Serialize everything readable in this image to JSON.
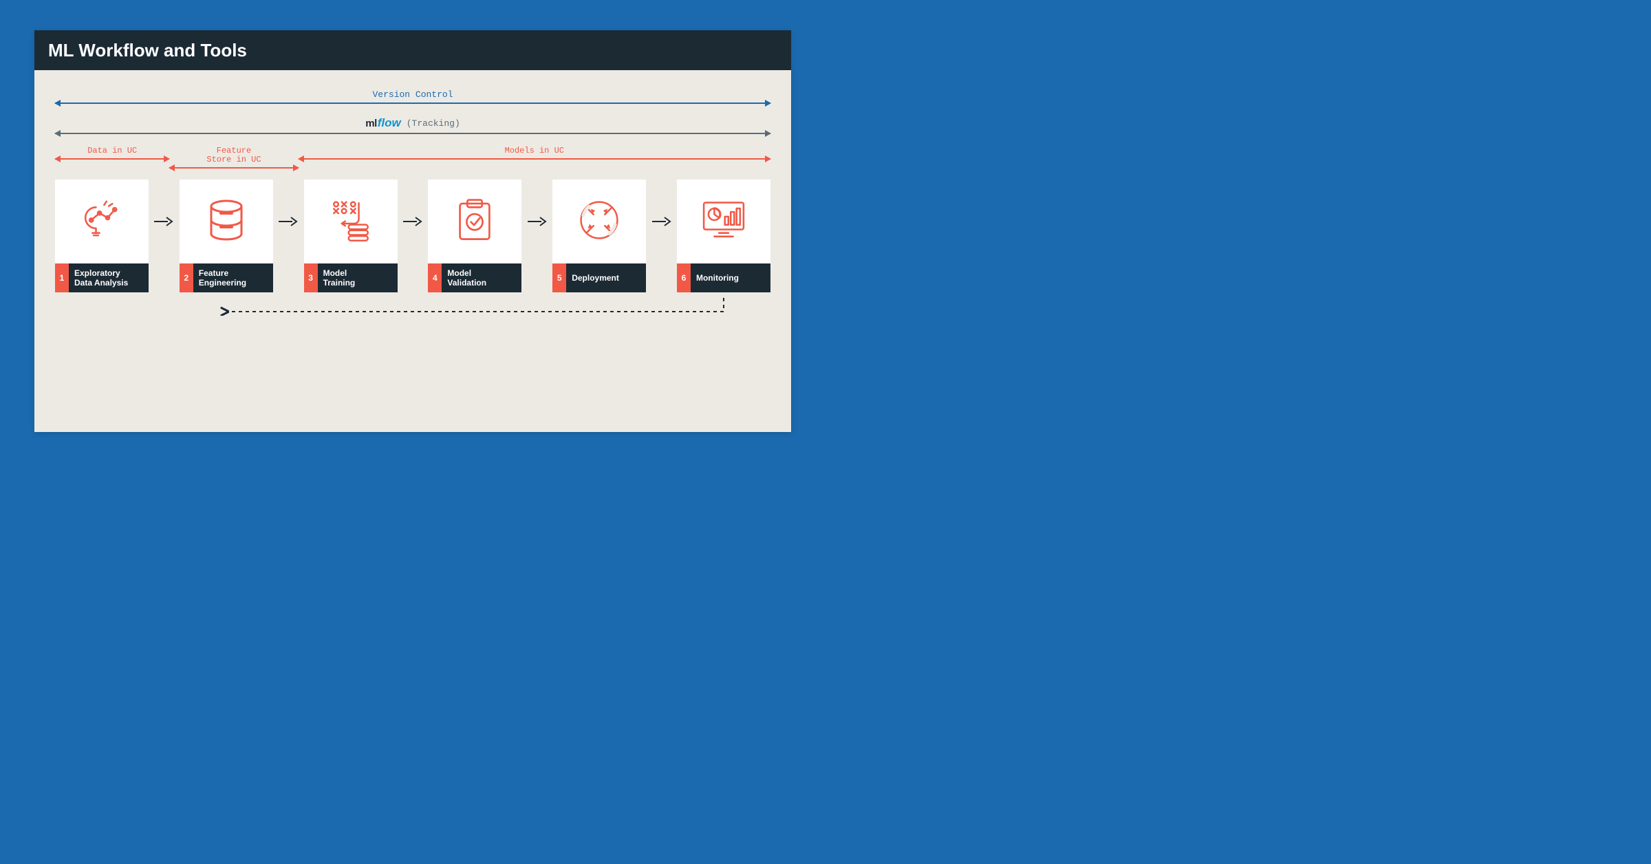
{
  "type": "flowchart",
  "colors": {
    "page_bg": "#1b6aaf",
    "card_bg": "#edeae4",
    "header_bg": "#1c2a34",
    "header_text": "#ffffff",
    "version_control": "#1b6aaf",
    "mlflow_arrow": "#5a6c78",
    "uc_spans": "#f15946",
    "step_icon": "#f15946",
    "step_box_bg": "#ffffff",
    "step_label_bg": "#1c2a34",
    "step_num_bg": "#f15946",
    "step_text": "#ffffff",
    "connector": "#1c2a34",
    "feedback_dash": "#1c2a34",
    "mlflow_ml": "#1c2a34",
    "mlflow_flow": "#0f93d2"
  },
  "header": {
    "title": "ML Workflow and Tools"
  },
  "spans": {
    "version_control": {
      "label": "Version Control"
    },
    "mlflow": {
      "ml": "ml",
      "flow": "flow",
      "tracking": "(Tracking)"
    },
    "uc": [
      {
        "label": "Data in UC",
        "width_pct": 16
      },
      {
        "label": "Feature\nStore in UC",
        "width_pct": 18
      },
      {
        "label": "Models in UC",
        "width_pct": 66
      }
    ]
  },
  "steps": [
    {
      "num": "1",
      "label": "Exploratory\nData Analysis",
      "icon": "lightbulb-chart-icon"
    },
    {
      "num": "2",
      "label": "Feature\nEngineering",
      "icon": "database-icon"
    },
    {
      "num": "3",
      "label": "Model\nTraining",
      "icon": "training-icon"
    },
    {
      "num": "4",
      "label": "Model\nValidation",
      "icon": "clipboard-check-icon"
    },
    {
      "num": "5",
      "label": "Deployment",
      "icon": "deploy-icon"
    },
    {
      "num": "6",
      "label": "Monitoring",
      "icon": "monitoring-icon"
    }
  ],
  "feedback": {
    "from_step": 6,
    "to_step": 2,
    "style": "dashed"
  }
}
